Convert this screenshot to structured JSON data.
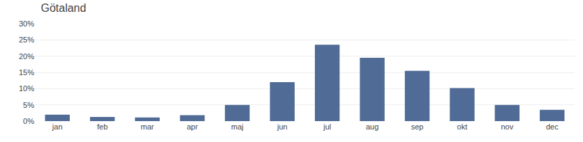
{
  "chart_data": {
    "type": "bar",
    "title": "Götaland",
    "categories": [
      "jan",
      "feb",
      "mar",
      "apr",
      "maj",
      "jun",
      "jul",
      "aug",
      "sep",
      "okt",
      "nov",
      "dec"
    ],
    "values": [
      2.0,
      1.3,
      1.1,
      1.8,
      5.0,
      12.0,
      23.5,
      19.5,
      15.5,
      10.2,
      5.0,
      3.5
    ],
    "color": "#4f6b96",
    "ylim": [
      0,
      30
    ],
    "yticks": [
      {
        "value": 0,
        "label": "0%"
      },
      {
        "value": 5,
        "label": "5%"
      },
      {
        "value": 10,
        "label": "10%"
      },
      {
        "value": 15,
        "label": "15%"
      },
      {
        "value": 20,
        "label": "20%"
      },
      {
        "value": 25,
        "label": "25%"
      },
      {
        "value": 30,
        "label": "30%"
      }
    ],
    "grid": true
  }
}
